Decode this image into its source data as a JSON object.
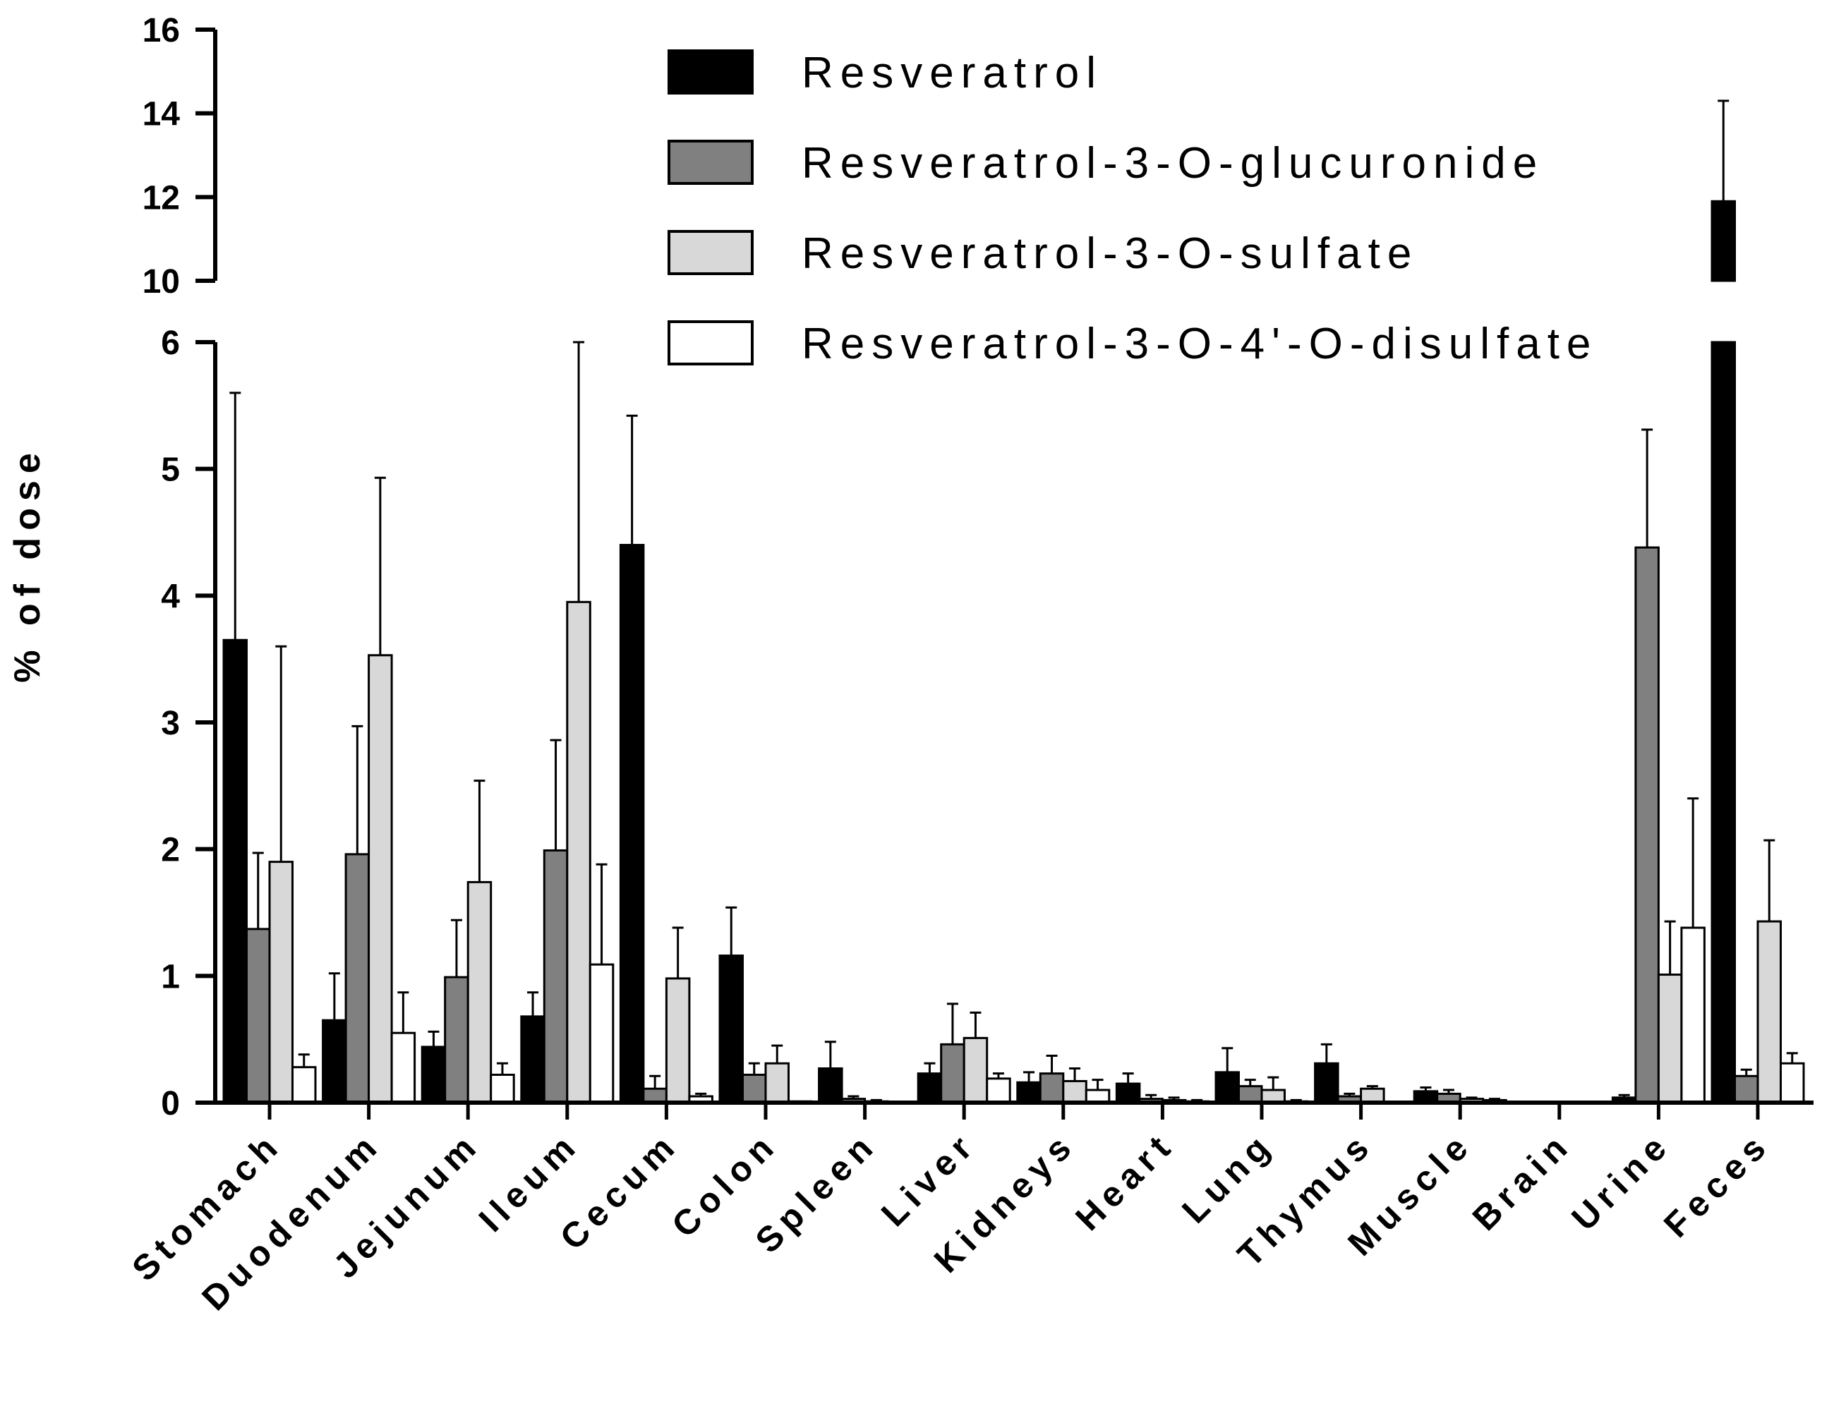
{
  "chart_data": {
    "type": "bar",
    "title": "",
    "xlabel": "",
    "ylabel": "% of dose",
    "grid": false,
    "legend_position": "top-right",
    "y_axis_break": {
      "lower_range": [
        0,
        6
      ],
      "upper_range": [
        10,
        16
      ]
    },
    "ylim": [
      0,
      16
    ],
    "yticks_lower": [
      "0",
      "1",
      "2",
      "3",
      "4",
      "5",
      "6"
    ],
    "yticks_upper": [
      "10",
      "12",
      "14",
      "16"
    ],
    "categories": [
      "Stomach",
      "Duodenum",
      "Jejunum",
      "Ileum",
      "Cecum",
      "Colon",
      "Spleen",
      "Liver",
      "Kidneys",
      "Heart",
      "Lung",
      "Thymus",
      "Muscle",
      "Brain",
      "Urine",
      "Feces"
    ],
    "series": [
      {
        "name": "Resveratrol",
        "color": "#000000",
        "values": [
          3.65,
          0.65,
          0.44,
          0.68,
          4.4,
          1.16,
          0.27,
          0.23,
          0.16,
          0.15,
          0.24,
          0.31,
          0.09,
          0.0,
          0.04,
          11.9
        ],
        "errors": [
          1.95,
          0.37,
          0.12,
          0.19,
          1.02,
          0.38,
          0.21,
          0.08,
          0.08,
          0.08,
          0.19,
          0.15,
          0.03,
          0.0,
          0.02,
          2.4
        ]
      },
      {
        "name": "Resveratrol-3-O-glucuronide",
        "color": "#808080",
        "values": [
          1.37,
          1.96,
          0.99,
          1.99,
          0.11,
          0.22,
          0.03,
          0.46,
          0.23,
          0.03,
          0.13,
          0.05,
          0.07,
          0.0,
          4.38,
          0.21
        ],
        "errors": [
          0.6,
          1.01,
          0.45,
          0.87,
          0.1,
          0.09,
          0.02,
          0.32,
          0.14,
          0.03,
          0.05,
          0.02,
          0.03,
          0.0,
          0.93,
          0.05
        ]
      },
      {
        "name": "Resveratrol-3-O-sulfate",
        "color": "#d8d8d8",
        "values": [
          1.9,
          3.53,
          1.74,
          3.95,
          0.98,
          0.31,
          0.01,
          0.51,
          0.17,
          0.02,
          0.1,
          0.11,
          0.03,
          0.0,
          1.01,
          1.43
        ],
        "errors": [
          1.7,
          1.4,
          0.8,
          2.05,
          0.4,
          0.14,
          0.01,
          0.2,
          0.1,
          0.02,
          0.1,
          0.02,
          0.01,
          0.0,
          0.42,
          0.64
        ]
      },
      {
        "name": "Resveratrol-3-O-4'-O-disulfate",
        "color": "#ffffff",
        "values": [
          0.28,
          0.55,
          0.22,
          1.09,
          0.05,
          0.01,
          0.0,
          0.19,
          0.1,
          0.01,
          0.01,
          0.0,
          0.02,
          0.0,
          1.38,
          0.31
        ],
        "errors": [
          0.1,
          0.32,
          0.09,
          0.79,
          0.02,
          0.0,
          0.0,
          0.04,
          0.08,
          0.01,
          0.01,
          0.0,
          0.01,
          0.0,
          1.02,
          0.08
        ]
      }
    ]
  }
}
